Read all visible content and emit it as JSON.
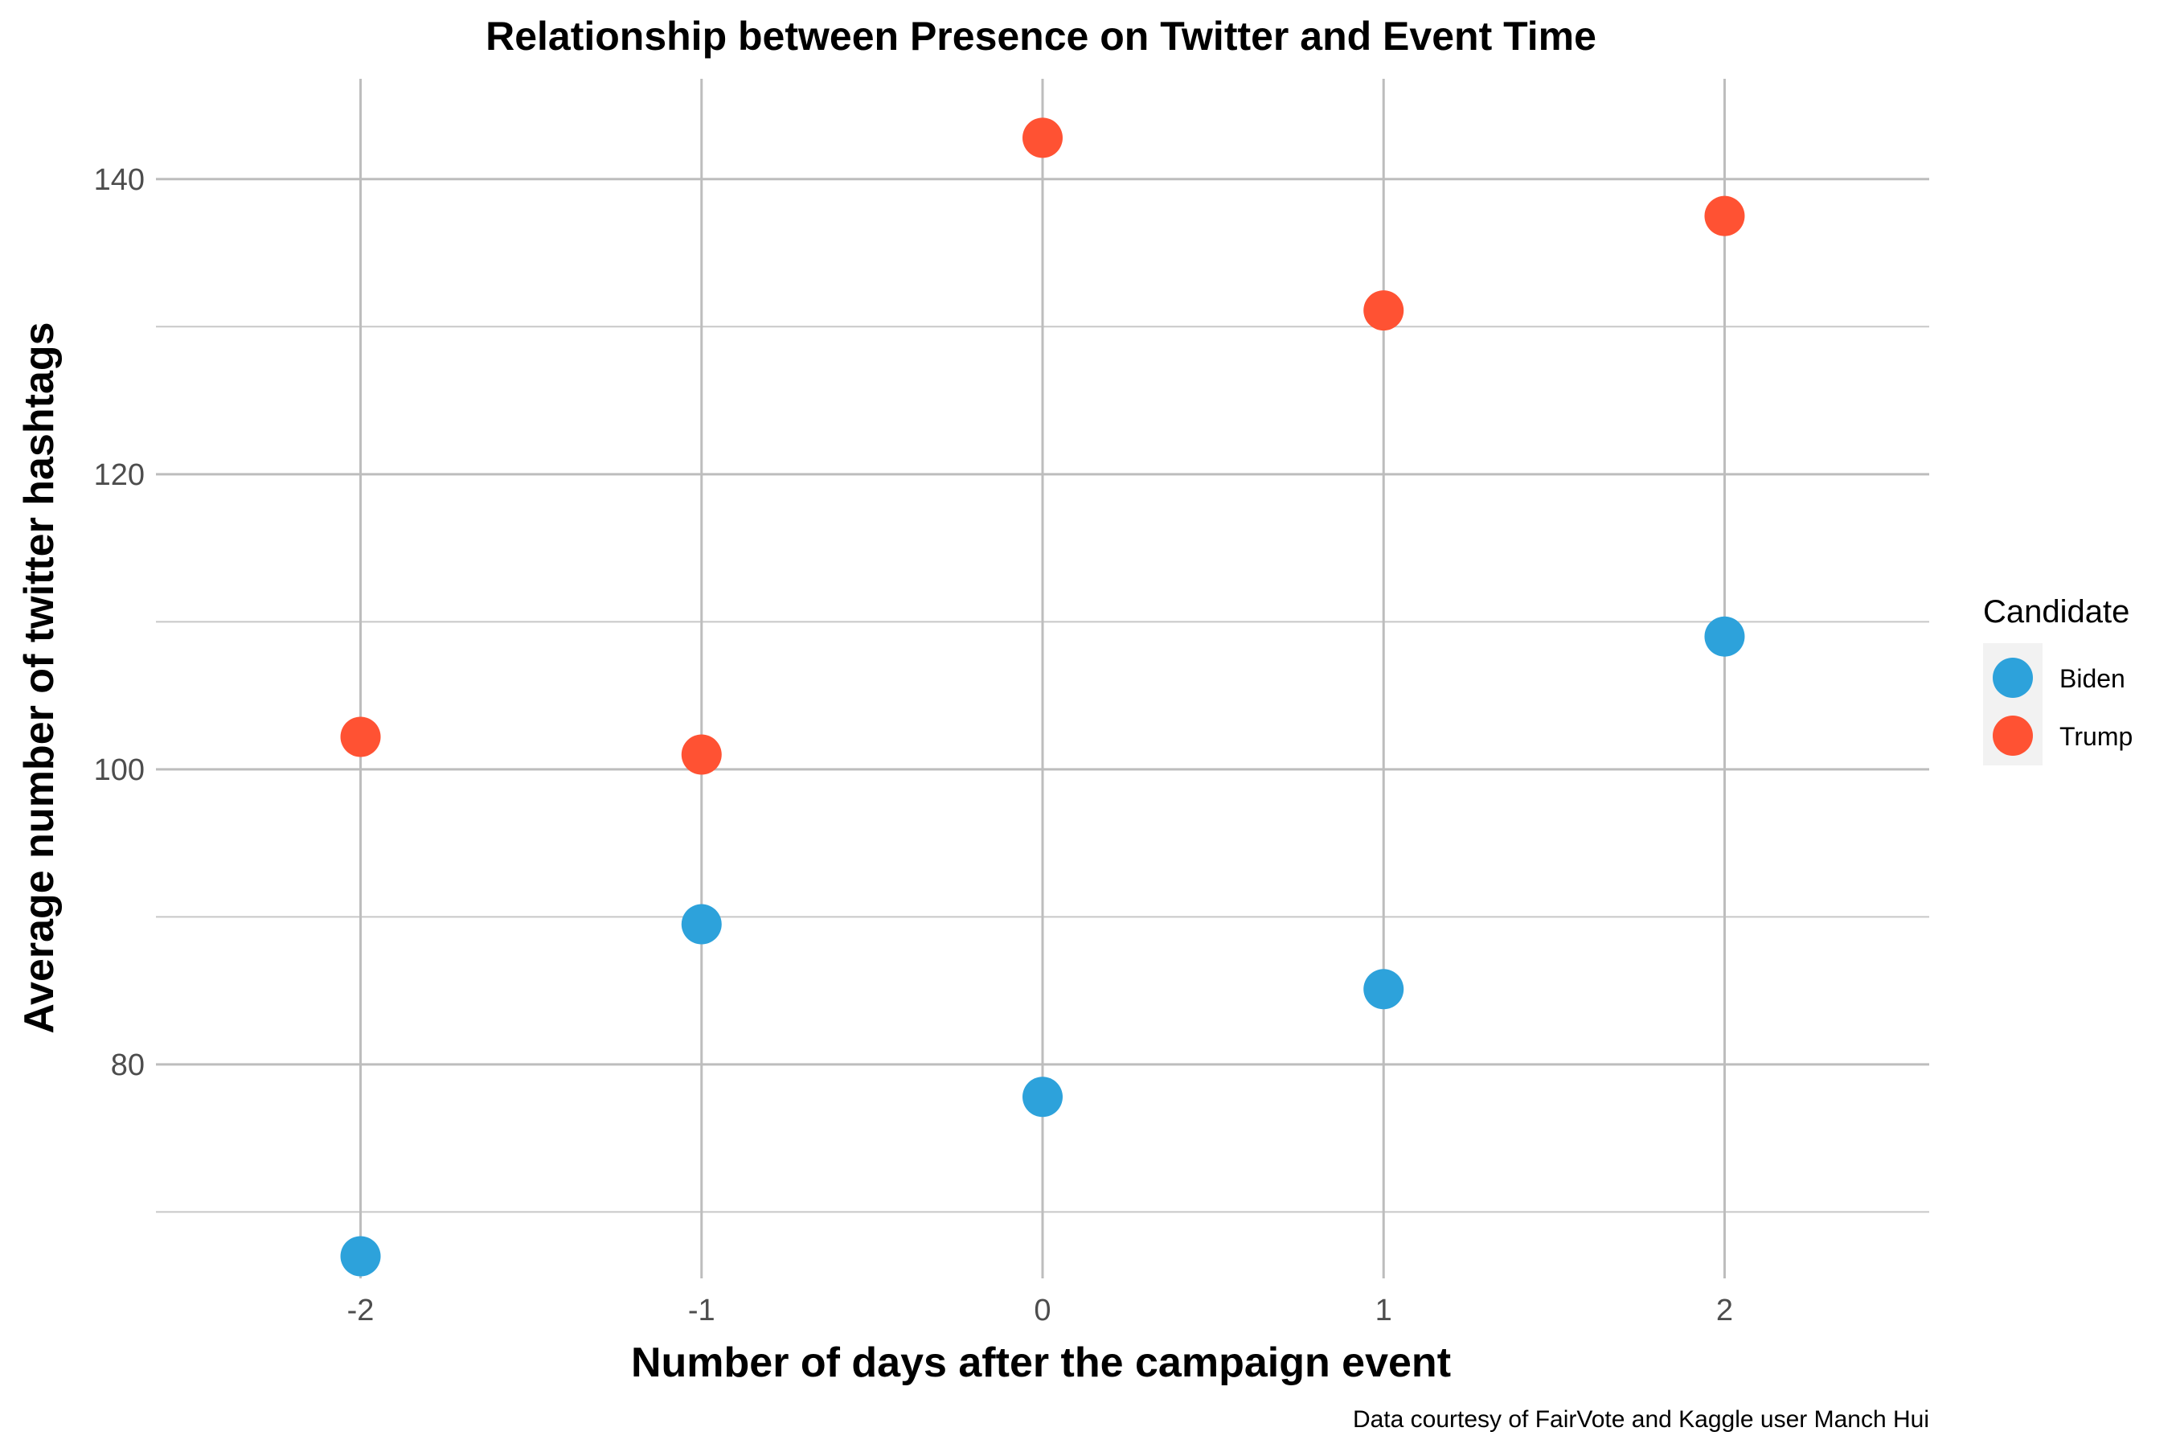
{
  "chart_data": {
    "type": "scatter",
    "title": "Relationship between Presence on Twitter and Event Time",
    "xlabel": "Number of days after the campaign event",
    "ylabel": "Average number of twitter hashtags",
    "caption": "Data courtesy of FairVote and Kaggle user Manch Hui",
    "x_ticks": [
      -2,
      -1,
      0,
      1,
      2
    ],
    "y_ticks": [
      80,
      100,
      120,
      140
    ],
    "xlim": [
      -2.6,
      2.6
    ],
    "ylim": [
      65.5,
      146.8
    ],
    "grid": true,
    "legend": {
      "title": "Candidate",
      "position": "right"
    },
    "series": [
      {
        "name": "Biden",
        "color": "#2da2db",
        "x": [
          -2,
          -1,
          0,
          1,
          2
        ],
        "y": [
          67.0,
          89.5,
          77.8,
          85.1,
          109.0
        ]
      },
      {
        "name": "Trump",
        "color": "#ff5233",
        "x": [
          -2,
          -1,
          0,
          1,
          2
        ],
        "y": [
          102.2,
          101.0,
          142.8,
          131.1,
          137.5
        ]
      }
    ]
  }
}
